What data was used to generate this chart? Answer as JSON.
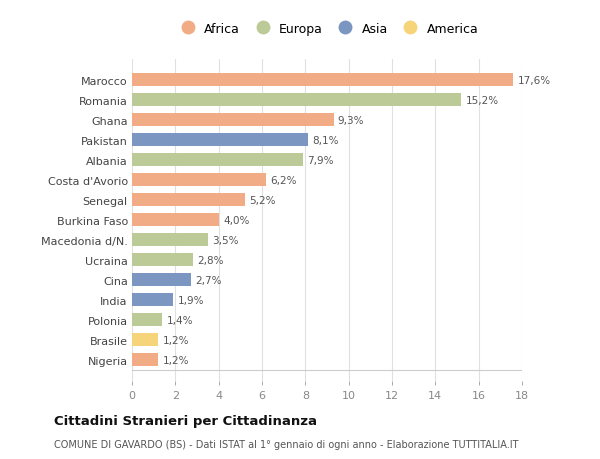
{
  "countries": [
    "Nigeria",
    "Brasile",
    "Polonia",
    "India",
    "Cina",
    "Ucraina",
    "Macedonia d/N.",
    "Burkina Faso",
    "Senegal",
    "Costa d'Avorio",
    "Albania",
    "Pakistan",
    "Ghana",
    "Romania",
    "Marocco"
  ],
  "values": [
    1.2,
    1.2,
    1.4,
    1.9,
    2.7,
    2.8,
    3.5,
    4.0,
    5.2,
    6.2,
    7.9,
    8.1,
    9.3,
    15.2,
    17.6
  ],
  "continents": [
    "Africa",
    "America",
    "Europa",
    "Asia",
    "Asia",
    "Europa",
    "Europa",
    "Africa",
    "Africa",
    "Africa",
    "Europa",
    "Asia",
    "Africa",
    "Europa",
    "Africa"
  ],
  "labels": [
    "1,2%",
    "1,2%",
    "1,4%",
    "1,9%",
    "2,7%",
    "2,8%",
    "3,5%",
    "4,0%",
    "5,2%",
    "6,2%",
    "7,9%",
    "8,1%",
    "9,3%",
    "15,2%",
    "17,6%"
  ],
  "colors": {
    "Africa": "#F2AC85",
    "Europa": "#BBCA97",
    "Asia": "#7B96C0",
    "America": "#F5D47A"
  },
  "legend_order": [
    "Africa",
    "Europa",
    "Asia",
    "America"
  ],
  "title": "Cittadini Stranieri per Cittadinanza",
  "subtitle": "COMUNE DI GAVARDO (BS) - Dati ISTAT al 1° gennaio di ogni anno - Elaborazione TUTTITALIA.IT",
  "xlim": [
    0,
    18
  ],
  "xticks": [
    0,
    2,
    4,
    6,
    8,
    10,
    12,
    14,
    16,
    18
  ],
  "background_color": "#ffffff",
  "grid_color": "#e0e0e0",
  "bar_height": 0.65
}
